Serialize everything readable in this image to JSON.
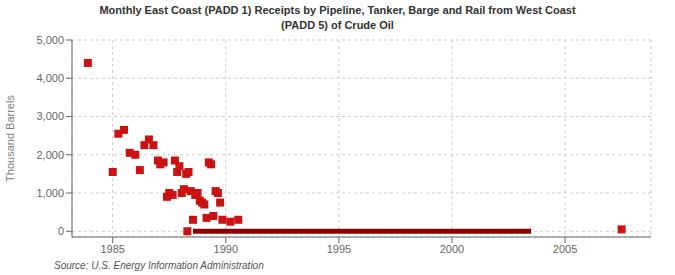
{
  "chart_data": {
    "type": "scatter",
    "title": "Monthly East Coast (PADD 1) Receipts by Pipeline, Tanker, Barge and Rail from West Coast\n(PADD 5) of Crude Oil",
    "ylabel": "Thousand Barrels",
    "annotations": [
      "Source: U.S. Energy Information Administration"
    ],
    "xlim": [
      1983.2,
      2008.8
    ],
    "ylim": [
      -150,
      5000
    ],
    "xticks": [
      1985,
      1990,
      1995,
      2000,
      2005
    ],
    "yticks": [
      0,
      {
        "value": 1000,
        "label": "1,000"
      },
      {
        "value": 2000,
        "label": "2,000"
      },
      {
        "value": 3000,
        "label": "3,000"
      },
      {
        "value": 4000,
        "label": "4,000"
      },
      {
        "value": 5000,
        "label": "5,000"
      }
    ],
    "grid": true,
    "series": [
      {
        "type": "scatter",
        "color": "#cc1111",
        "marker": "square",
        "x": [
          1983.9,
          1985.0,
          1985.25,
          1985.5,
          1985.75,
          1986.0,
          1986.2,
          1986.4,
          1986.6,
          1986.8,
          1987.0,
          1987.1,
          1987.25,
          1987.4,
          1987.5,
          1987.65,
          1987.75,
          1987.85,
          1987.95,
          1988.05,
          1988.15,
          1988.25,
          1988.35,
          1988.45,
          1988.55,
          1988.65,
          1988.75,
          1988.85,
          1988.95,
          1989.05,
          1989.15,
          1989.25,
          1989.35,
          1989.45,
          1989.55,
          1989.65,
          1989.75,
          1989.85,
          1990.2,
          1990.55,
          1988.3,
          2007.5
        ],
        "values": [
          4400,
          1550,
          2550,
          2650,
          2050,
          2000,
          1600,
          2250,
          2400,
          2250,
          1850,
          1750,
          1800,
          900,
          1000,
          950,
          1850,
          1550,
          1700,
          1000,
          1100,
          1500,
          1550,
          1050,
          300,
          950,
          1000,
          800,
          750,
          700,
          350,
          1800,
          1750,
          400,
          1050,
          1000,
          750,
          300,
          250,
          300,
          0,
          50
        ]
      },
      {
        "type": "line",
        "color": "#8b0000",
        "x": [
          1988.55,
          2003.5
        ],
        "values": [
          0,
          0
        ]
      }
    ]
  }
}
